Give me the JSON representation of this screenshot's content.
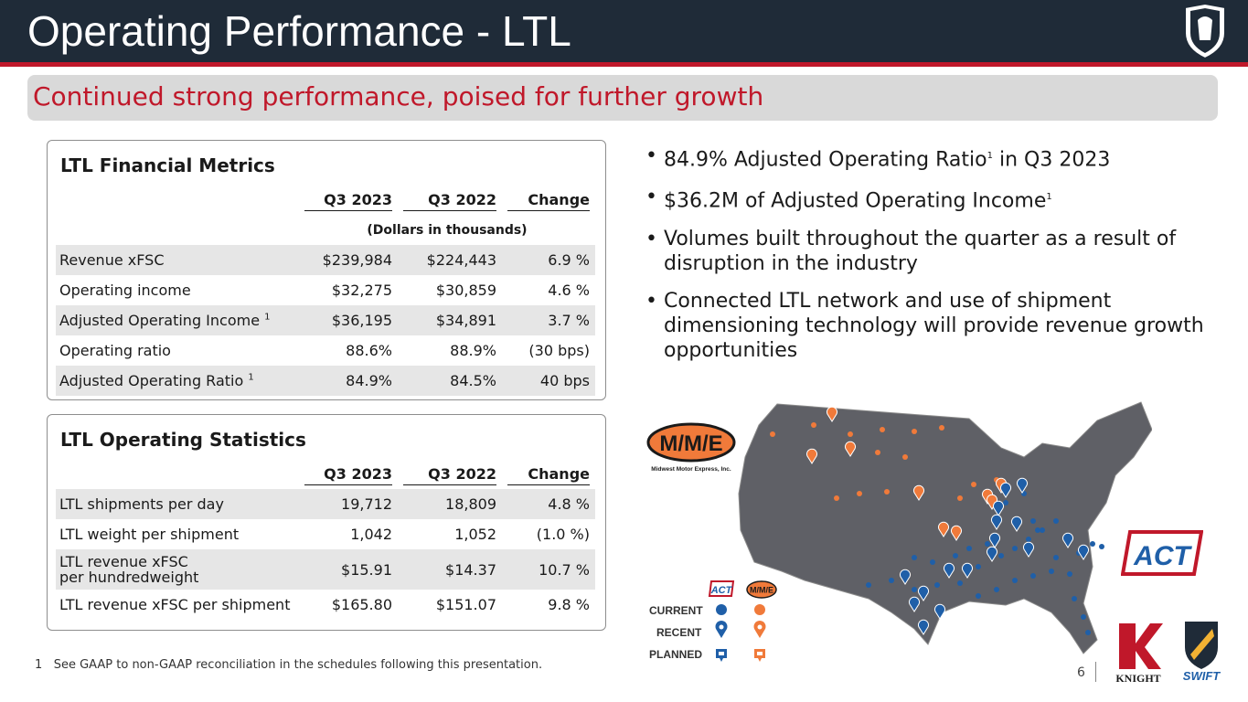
{
  "header": {
    "title": "Operating Performance - LTL",
    "subtitle": "Continued strong performance, poised for further growth"
  },
  "financial": {
    "title": "LTL Financial Metrics",
    "columns": [
      "Q3 2023",
      "Q3 2022",
      "Change"
    ],
    "units": "(Dollars in thousands)",
    "rows": [
      {
        "label": "Revenue xFSC",
        "sup": "",
        "q3_2023": "$239,984",
        "q3_2022": "$224,443",
        "change": "6.9 %"
      },
      {
        "label": "Operating income",
        "sup": "",
        "q3_2023": "$32,275",
        "q3_2022": "$30,859",
        "change": "4.6 %"
      },
      {
        "label": "Adjusted Operating Income",
        "sup": "1",
        "q3_2023": "$36,195",
        "q3_2022": "$34,891",
        "change": "3.7 %"
      },
      {
        "label": "Operating ratio",
        "sup": "",
        "q3_2023": "88.6%",
        "q3_2022": "88.9%",
        "change": "(30 bps)"
      },
      {
        "label": "Adjusted Operating Ratio",
        "sup": "1",
        "q3_2023": "84.9%",
        "q3_2022": "84.5%",
        "change": "40 bps"
      }
    ]
  },
  "operating": {
    "title": "LTL Operating Statistics",
    "columns": [
      "Q3 2023",
      "Q3 2022",
      "Change"
    ],
    "rows": [
      {
        "label": "LTL shipments per day",
        "q3_2023": "19,712",
        "q3_2022": "18,809",
        "change": "4.8 %"
      },
      {
        "label": "LTL weight per shipment",
        "q3_2023": "1,042",
        "q3_2022": "1,052",
        "change": "(1.0 %)"
      },
      {
        "label": "LTL revenue xFSC per hundredweight",
        "q3_2023": "$15.91",
        "q3_2022": "$14.37",
        "change": "10.7 %"
      },
      {
        "label": "LTL revenue xFSC per shipment",
        "q3_2023": "$165.80",
        "q3_2022": "$151.07",
        "change": "9.8 %"
      }
    ]
  },
  "bullets": [
    {
      "text": "84.9% Adjusted Operating Ratio",
      "sup": "1",
      "tail": " in Q3 2023"
    },
    {
      "text": "$36.2M of Adjusted Operating Income",
      "sup": "1",
      "tail": ""
    },
    {
      "text": "Volumes built throughout the quarter as a result of disruption in the industry",
      "sup": "",
      "tail": ""
    },
    {
      "text": "Connected LTL network and use of shipment dimensioning technology will provide revenue growth opportunities",
      "sup": "",
      "tail": ""
    }
  ],
  "map": {
    "legend": {
      "current": "CURRENT",
      "recent": "RECENT",
      "planned": "PLANNED"
    },
    "mme_caption": "Midwest Motor Express, Inc.",
    "mme_letters": "M/M/E",
    "act_letters": "ACT",
    "colors": {
      "act": "#1f5fa8",
      "mme": "#f07a3a",
      "land": "#5f6066"
    }
  },
  "footnote": {
    "marker": "1",
    "text": "See GAAP to non-GAAP reconciliation in the schedules following this presentation."
  },
  "page": {
    "number": "6"
  },
  "brands": {
    "knight": "KNIGHT",
    "swift": "SWIFT"
  }
}
